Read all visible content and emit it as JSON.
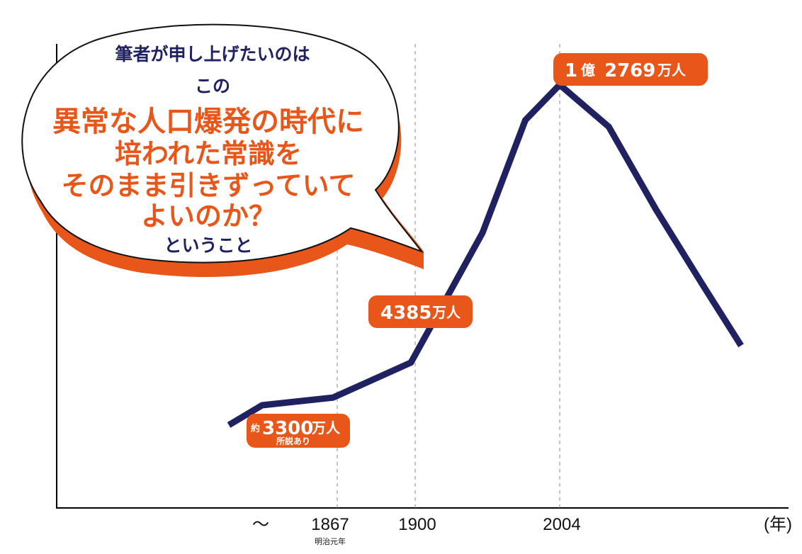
{
  "chart_data": {
    "type": "line",
    "x_ticks": [
      "〜",
      "1867",
      "1900",
      "2004",
      "(年)"
    ],
    "x_tick_sub": {
      "1867": "明治元年"
    },
    "points": [
      {
        "x": 1700,
        "y": 2500
      },
      {
        "x": 1750,
        "y": 3100
      },
      {
        "x": 1867,
        "y": 3330
      },
      {
        "x": 1900,
        "y": 4385
      },
      {
        "x": 1950,
        "y": 8300
      },
      {
        "x": 1980,
        "y": 11700
      },
      {
        "x": 2004,
        "y": 12769
      },
      {
        "x": 2030,
        "y": 11500
      },
      {
        "x": 2055,
        "y": 9000
      },
      {
        "x": 2080,
        "y": 6700
      },
      {
        "x": 2100,
        "y": 4900
      }
    ],
    "ylim": [
      0,
      14000
    ],
    "line_color": "#1f2160",
    "dashed_years": [
      1867,
      1900,
      2004
    ],
    "labels": {
      "l1867": {
        "prefix": "約",
        "value": "3300",
        "unit": "万人",
        "note": "所説あり"
      },
      "l1900": {
        "value": "4385",
        "unit": "万人"
      },
      "l2004": {
        "prefix": "1",
        "oku": "億",
        "value": "2769",
        "unit": "万人"
      }
    }
  },
  "bubble": {
    "line1": "筆者が申し上げたいのは",
    "line2": "この",
    "line3": "異常な人口爆発の時代に",
    "line4": "培われた常識を",
    "line5": "そのまま引きずっていて",
    "line6": "よいのか？",
    "line7": "ということ"
  },
  "colors": {
    "accent": "#e8561a",
    "navy": "#1f2160"
  }
}
